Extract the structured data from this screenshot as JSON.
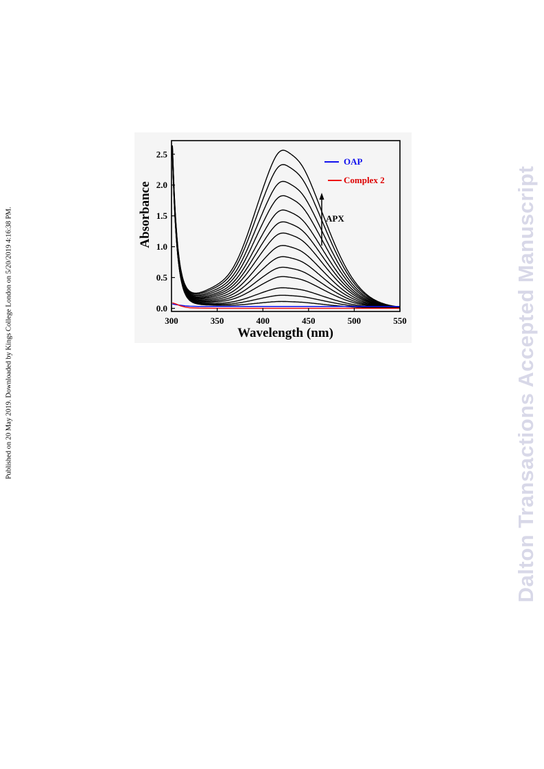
{
  "page": {
    "side_note": "Published on 20 May 2019. Downloaded by Kings College London on 5/20/2019 4:16:38 PM.",
    "watermark": "Dalton Transactions Accepted Manuscript"
  },
  "chart_data": {
    "type": "line",
    "title": "",
    "xlabel": "Wavelength (nm)",
    "ylabel": "Absorbance",
    "xlim": [
      300,
      550
    ],
    "ylim": [
      -0.05,
      2.72
    ],
    "xticks": [
      300,
      350,
      400,
      450,
      500,
      550
    ],
    "yticks": [
      0.0,
      0.5,
      1.0,
      1.5,
      2.0,
      2.5
    ],
    "ytick_labels": [
      "0.0",
      "0.5",
      "1.0",
      "1.5",
      "2.0",
      "2.5"
    ],
    "grid": false,
    "legend_position": "top-right",
    "legend": [
      {
        "label": "OAP",
        "color": "#1010ee",
        "text_color": "#1010ee"
      },
      {
        "label": "Complex 2",
        "color": "#ee1010",
        "text_color": "#dd0000"
      }
    ],
    "annotation": {
      "text": "APX",
      "arrow": "up"
    },
    "titration_peaks": [
      0.1,
      0.2,
      0.32,
      0.5,
      0.65,
      0.82,
      1.0,
      1.2,
      1.38,
      1.57,
      1.8,
      2.03,
      2.3,
      2.53
    ],
    "series": [
      {
        "name": "OAP",
        "color": "#1010ee",
        "x": [
          301,
          305,
          310,
          315,
          320,
          330,
          350,
          400,
          450,
          500,
          550
        ],
        "y": [
          0.07,
          0.06,
          0.05,
          0.04,
          0.035,
          0.03,
          0.03,
          0.03,
          0.03,
          0.03,
          0.03
        ]
      },
      {
        "name": "Complex 2",
        "color": "#ee1010",
        "x": [
          301,
          305,
          310,
          315,
          320,
          330,
          350,
          400,
          450,
          500,
          550
        ],
        "y": [
          0.09,
          0.07,
          0.04,
          0.02,
          0.01,
          0.005,
          0.0,
          0.0,
          0.0,
          0.0,
          0.0
        ]
      }
    ]
  }
}
